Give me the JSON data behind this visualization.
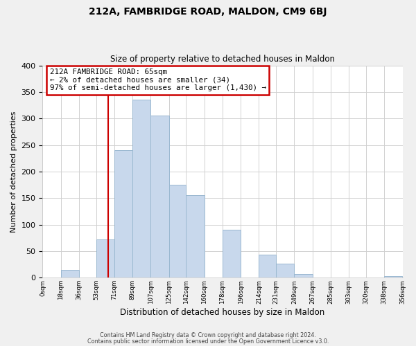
{
  "title": "212A, FAMBRIDGE ROAD, MALDON, CM9 6BJ",
  "subtitle": "Size of property relative to detached houses in Maldon",
  "xlabel": "Distribution of detached houses by size in Maldon",
  "ylabel": "Number of detached properties",
  "bar_color": "#c8d8ec",
  "bar_edge_color": "#9ab8d0",
  "annotation_box_color": "#ffffff",
  "annotation_border_color": "#cc0000",
  "marker_line_color": "#cc0000",
  "marker_value": 65,
  "annotation_title": "212A FAMBRIDGE ROAD: 65sqm",
  "annotation_line1": "← 2% of detached houses are smaller (34)",
  "annotation_line2": "97% of semi-detached houses are larger (1,430) →",
  "bin_edges": [
    0,
    18,
    36,
    53,
    71,
    89,
    107,
    125,
    142,
    160,
    178,
    196,
    214,
    231,
    249,
    267,
    285,
    303,
    320,
    338,
    356
  ],
  "bin_counts": [
    0,
    15,
    0,
    72,
    240,
    335,
    305,
    175,
    155,
    0,
    90,
    0,
    44,
    27,
    7,
    0,
    0,
    0,
    0,
    3
  ],
  "ylim": [
    0,
    400
  ],
  "yticks": [
    0,
    50,
    100,
    150,
    200,
    250,
    300,
    350,
    400
  ],
  "footer_line1": "Contains HM Land Registry data © Crown copyright and database right 2024.",
  "footer_line2": "Contains public sector information licensed under the Open Government Licence v3.0.",
  "background_color": "#f0f0f0",
  "plot_background_color": "#ffffff",
  "grid_color": "#d0d0d0"
}
